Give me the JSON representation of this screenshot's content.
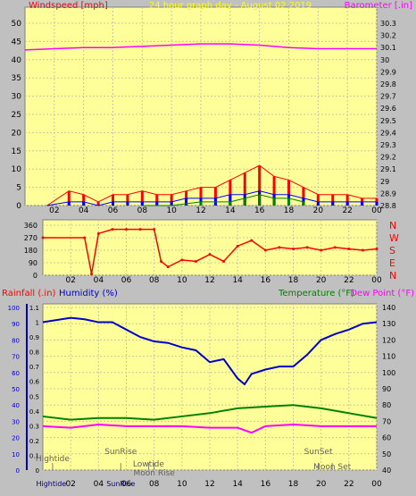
{
  "chart_data": [
    {
      "type": "line",
      "title": "24 hour graph day - August 02 2019",
      "ylabel_left": "Windspeed [mph]",
      "ylabel_right": "Barometer [.in]",
      "x_ticks": [
        "02",
        "04",
        "06",
        "08",
        "10",
        "12",
        "14",
        "16",
        "18",
        "20",
        "22",
        "00"
      ],
      "left_ticks": [
        "0",
        "5",
        "10",
        "15",
        "20",
        "25",
        "30",
        "35",
        "40",
        "45",
        "50"
      ],
      "right_ticks": [
        "28.8",
        "28.9",
        "29",
        "29.1",
        "29.2",
        "29.3",
        "29.4",
        "29.5",
        "29.6",
        "29.7",
        "29.8",
        "29.9",
        "30",
        "30.1",
        "30.2",
        "30.3"
      ],
      "ylim_left": [
        0,
        50
      ],
      "ylim_right": [
        28.8,
        30.3
      ],
      "series": [
        {
          "color": "#ff00ff",
          "axis": "right",
          "x": [
            0,
            2,
            4,
            6,
            8,
            10,
            12,
            14,
            16,
            18,
            20,
            22,
            24
          ],
          "y": [
            30.08,
            30.09,
            30.1,
            30.1,
            30.11,
            30.12,
            30.13,
            30.13,
            30.12,
            30.1,
            30.09,
            30.09,
            30.09
          ]
        },
        {
          "color": "#ff0000",
          "axis": "left",
          "x": [
            1.5,
            3,
            4,
            5,
            6,
            7,
            8,
            9,
            10,
            11,
            12,
            13,
            14,
            15,
            16,
            17,
            18,
            19,
            20,
            21,
            22,
            23,
            24
          ],
          "y": [
            0,
            4,
            3,
            1,
            3,
            3,
            4,
            3,
            3,
            4,
            5,
            5,
            7,
            9,
            11,
            8,
            7,
            5,
            3,
            3,
            3,
            2,
            2
          ]
        },
        {
          "color": "#0000ff",
          "axis": "left",
          "x": [
            1.5,
            3,
            4,
            5,
            6,
            7,
            8,
            9,
            10,
            11,
            12,
            13,
            14,
            15,
            16,
            17,
            18,
            19,
            20,
            21,
            22,
            23,
            24
          ],
          "y": [
            0,
            1,
            1,
            0,
            1,
            1,
            1,
            1,
            1,
            2,
            2,
            2,
            3,
            3,
            4,
            3,
            3,
            2,
            1,
            1,
            1,
            1,
            1
          ]
        },
        {
          "color": "#008000",
          "axis": "left",
          "x": [
            8,
            10,
            12,
            14,
            15,
            16,
            17,
            18,
            19
          ],
          "y": [
            0,
            0,
            1,
            1,
            2,
            3,
            2,
            2,
            1
          ]
        }
      ]
    },
    {
      "type": "scatter",
      "ylabel_right_compass": [
        "N",
        "W",
        "S",
        "E",
        "N"
      ],
      "left_ticks": [
        "0",
        "90",
        "180",
        "270",
        "360"
      ],
      "ylim": [
        0,
        360
      ],
      "x_ticks": [
        "02",
        "04",
        "06",
        "08",
        "10",
        "12",
        "14",
        "16",
        "18",
        "20",
        "22",
        "00"
      ],
      "series": [
        {
          "color": "#ff0000",
          "x": [
            0,
            3,
            3.5,
            4,
            5,
            6,
            7,
            8,
            8.5,
            9,
            10,
            11,
            12,
            13,
            14,
            15,
            16,
            17,
            18,
            19,
            20,
            21,
            22,
            23,
            24
          ],
          "y": [
            270,
            270,
            10,
            300,
            330,
            330,
            330,
            330,
            100,
            60,
            110,
            100,
            150,
            100,
            210,
            250,
            180,
            200,
            190,
            200,
            180,
            200,
            190,
            180,
            190
          ]
        }
      ]
    },
    {
      "type": "line",
      "ylabel_left_1": "Rainfall (.in)",
      "ylabel_left_2": "Humidity (%)",
      "ylabel_right_1": "Temperature (°F)",
      "ylabel_right_2": "Dew Point (°F)",
      "rain_ticks": [
        "0",
        "10",
        "20",
        "30",
        "40",
        "50",
        "60",
        "70",
        "80",
        "90",
        "100"
      ],
      "humidity_ticks": [
        "0",
        "0.1",
        "0.2",
        "0.3",
        "0.4",
        "0.5",
        "0.6",
        "0.7",
        "0.8",
        "0.9",
        "1",
        "1.1"
      ],
      "temp_ticks": [
        "40",
        "50",
        "60",
        "70",
        "80",
        "90",
        "100",
        "110",
        "120",
        "130",
        "140"
      ],
      "x_ticks": [
        "Hightide",
        "02",
        "04",
        "SunRise",
        "06",
        "08",
        "10",
        "12",
        "14",
        "16",
        "18",
        "20",
        "22",
        "00"
      ],
      "annotations": [
        "Hightide",
        "SunRise",
        "Lowtide",
        "Moon Rise",
        "SunSet",
        "Moon Set"
      ],
      "ylim_rain": [
        0,
        100
      ],
      "ylim_humidity": [
        0,
        1.1
      ],
      "ylim_temp": [
        40,
        140
      ],
      "series": [
        {
          "color": "#0000cc",
          "axis": "humidity",
          "x": [
            0,
            2,
            3,
            4,
            5,
            6,
            7,
            8,
            9,
            10,
            11,
            12,
            13,
            14,
            14.5,
            15,
            16,
            17,
            18,
            19,
            20,
            21,
            22,
            23,
            24
          ],
          "y": [
            1.0,
            1.03,
            1.02,
            1.0,
            1.0,
            0.95,
            0.9,
            0.87,
            0.86,
            0.83,
            0.81,
            0.73,
            0.75,
            0.62,
            0.58,
            0.65,
            0.68,
            0.7,
            0.7,
            0.78,
            0.88,
            0.92,
            0.95,
            0.99,
            1.0
          ]
        },
        {
          "color": "#008000",
          "axis": "temp",
          "x": [
            0,
            2,
            4,
            6,
            8,
            10,
            12,
            14,
            16,
            18,
            20,
            22,
            24
          ],
          "y": [
            73,
            71,
            72,
            72,
            71,
            73,
            75,
            78,
            79,
            80,
            78,
            75,
            72
          ]
        },
        {
          "color": "#ff00ff",
          "axis": "temp",
          "x": [
            0,
            2,
            4,
            6,
            8,
            10,
            12,
            14,
            15,
            16,
            18,
            20,
            22,
            24
          ],
          "y": [
            67,
            66,
            68,
            67,
            67,
            67,
            66,
            66,
            63,
            67,
            68,
            67,
            67,
            67
          ]
        }
      ]
    }
  ]
}
